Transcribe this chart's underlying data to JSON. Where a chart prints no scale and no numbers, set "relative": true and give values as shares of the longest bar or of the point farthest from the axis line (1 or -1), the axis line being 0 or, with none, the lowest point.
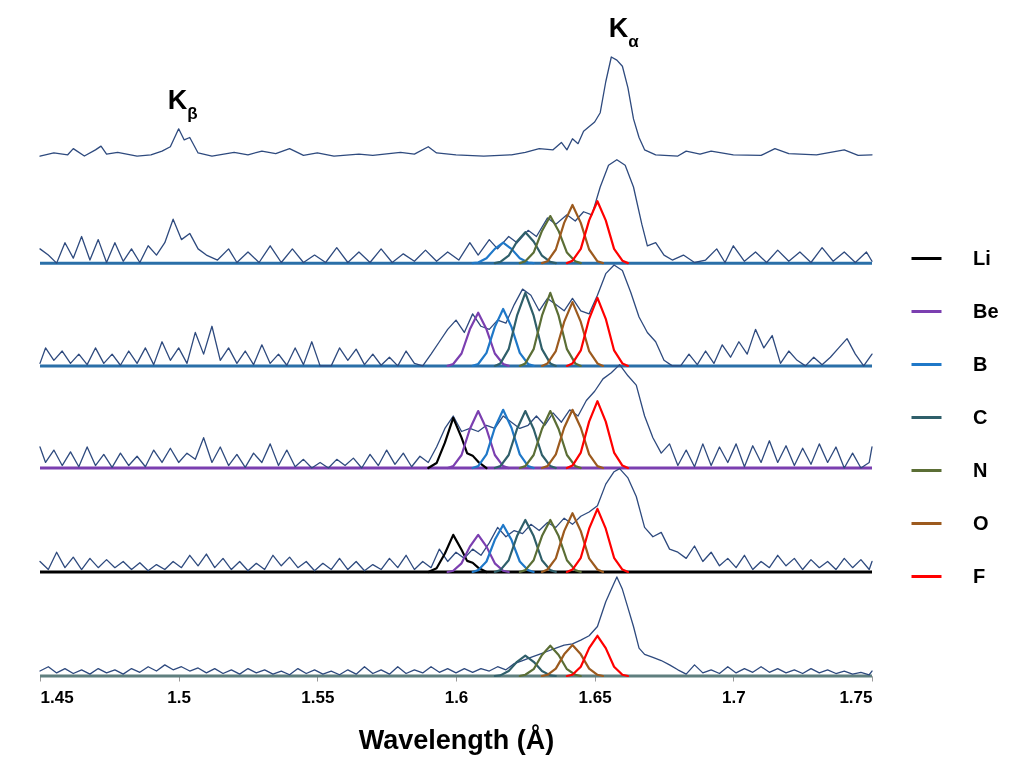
{
  "chart_data": {
    "type": "line",
    "relative": true,
    "xlabel": "Wavelength (Å)",
    "xlim": [
      1.45,
      1.75
    ],
    "xticks": [
      1.45,
      1.5,
      1.55,
      1.6,
      1.65,
      1.7,
      1.75
    ],
    "legend": "right",
    "grid": false,
    "annotations": [
      {
        "text": "K$_{β}$",
        "x": 1.5,
        "y": 0.884
      },
      {
        "text": "K$_{α}$",
        "x": 1.659,
        "y": 1.0
      }
    ],
    "ref_lines": [
      {
        "axis": "y",
        "value": 0.667,
        "color": "#2a6fa8"
      },
      {
        "axis": "y",
        "value": 0.501,
        "color": "#2a6fa8"
      },
      {
        "axis": "y",
        "value": 0.336,
        "color": "#7b3fb0"
      },
      {
        "axis": "y",
        "value": 0.168,
        "color": "#000000"
      },
      {
        "axis": "y",
        "value": 0,
        "color": "#5f7f7f"
      }
    ],
    "series": [
      {
        "color": "#2e4a7e",
        "x": [
          1.45,
          1.455,
          1.46,
          1.462,
          1.466,
          1.47,
          1.472,
          1.474,
          1.478,
          1.485,
          1.49,
          1.494,
          1.497,
          1.5,
          1.502,
          1.504,
          1.507,
          1.512,
          1.52,
          1.525,
          1.53,
          1.535,
          1.54,
          1.545,
          1.55,
          1.556,
          1.565,
          1.57,
          1.58,
          1.585,
          1.59,
          1.593,
          1.6,
          1.61,
          1.62,
          1.625,
          1.63,
          1.635,
          1.638,
          1.64,
          1.642,
          1.644,
          1.646,
          1.65,
          1.652,
          1.654,
          1.656,
          1.658,
          1.66,
          1.662,
          1.664,
          1.666,
          1.668,
          1.672,
          1.68,
          1.683,
          1.688,
          1.692,
          1.7,
          1.71,
          1.715,
          1.72,
          1.73,
          1.74,
          1.745,
          1.75
        ],
        "values": [
          0.84,
          0.845,
          0.842,
          0.852,
          0.84,
          0.85,
          0.856,
          0.843,
          0.846,
          0.84,
          0.842,
          0.848,
          0.855,
          0.884,
          0.866,
          0.87,
          0.845,
          0.84,
          0.846,
          0.842,
          0.848,
          0.844,
          0.852,
          0.841,
          0.845,
          0.84,
          0.843,
          0.841,
          0.846,
          0.843,
          0.855,
          0.845,
          0.842,
          0.84,
          0.842,
          0.846,
          0.852,
          0.85,
          0.862,
          0.85,
          0.868,
          0.86,
          0.88,
          0.895,
          0.91,
          0.96,
          1.0,
          0.995,
          0.985,
          0.95,
          0.9,
          0.87,
          0.85,
          0.842,
          0.84,
          0.848,
          0.843,
          0.848,
          0.842,
          0.841,
          0.852,
          0.844,
          0.842,
          0.85,
          0.841,
          0.842
        ]
      },
      {
        "color": "#2e4a7e",
        "x": [
          1.45,
          1.453,
          1.456,
          1.459,
          1.462,
          1.465,
          1.468,
          1.471,
          1.474,
          1.477,
          1.48,
          1.483,
          1.486,
          1.489,
          1.492,
          1.495,
          1.498,
          1.501,
          1.504,
          1.507,
          1.51,
          1.514,
          1.518,
          1.521,
          1.525,
          1.529,
          1.533,
          1.537,
          1.541,
          1.545,
          1.549,
          1.553,
          1.557,
          1.561,
          1.565,
          1.569,
          1.573,
          1.577,
          1.581,
          1.585,
          1.589,
          1.593,
          1.597,
          1.601,
          1.605,
          1.608,
          1.612,
          1.615,
          1.619,
          1.622,
          1.626,
          1.629,
          1.633,
          1.636,
          1.64,
          1.643,
          1.646,
          1.649,
          1.652,
          1.655,
          1.658,
          1.661,
          1.664,
          1.667,
          1.669,
          1.672,
          1.675,
          1.678,
          1.682,
          1.686,
          1.69,
          1.694,
          1.697,
          1.7,
          1.704,
          1.708,
          1.712,
          1.716,
          1.72,
          1.724,
          1.728,
          1.732,
          1.736,
          1.74,
          1.744,
          1.748,
          1.75
        ],
        "values": [
          0.69,
          0.68,
          0.667,
          0.7,
          0.675,
          0.71,
          0.672,
          0.705,
          0.668,
          0.7,
          0.67,
          0.69,
          0.668,
          0.695,
          0.68,
          0.7,
          0.738,
          0.705,
          0.715,
          0.69,
          0.68,
          0.672,
          0.69,
          0.668,
          0.685,
          0.668,
          0.695,
          0.668,
          0.69,
          0.668,
          0.68,
          0.668,
          0.692,
          0.668,
          0.685,
          0.668,
          0.69,
          0.668,
          0.682,
          0.67,
          0.688,
          0.67,
          0.685,
          0.672,
          0.7,
          0.68,
          0.705,
          0.69,
          0.71,
          0.7,
          0.72,
          0.71,
          0.74,
          0.73,
          0.745,
          0.735,
          0.75,
          0.745,
          0.79,
          0.825,
          0.834,
          0.825,
          0.79,
          0.73,
          0.695,
          0.7,
          0.68,
          0.672,
          0.68,
          0.668,
          0.672,
          0.69,
          0.668,
          0.695,
          0.67,
          0.685,
          0.668,
          0.688,
          0.67,
          0.685,
          0.668,
          0.692,
          0.67,
          0.685,
          0.668,
          0.685,
          0.67
        ]
      },
      {
        "color": "#2e4a7e",
        "x": [
          1.45,
          1.452,
          1.455,
          1.458,
          1.461,
          1.464,
          1.467,
          1.47,
          1.473,
          1.476,
          1.479,
          1.482,
          1.485,
          1.488,
          1.491,
          1.494,
          1.497,
          1.5,
          1.503,
          1.506,
          1.509,
          1.512,
          1.515,
          1.518,
          1.521,
          1.524,
          1.527,
          1.53,
          1.533,
          1.536,
          1.539,
          1.542,
          1.545,
          1.548,
          1.551,
          1.555,
          1.558,
          1.561,
          1.564,
          1.567,
          1.57,
          1.573,
          1.576,
          1.579,
          1.582,
          1.585,
          1.588,
          1.591,
          1.594,
          1.597,
          1.6,
          1.603,
          1.606,
          1.609,
          1.612,
          1.615,
          1.618,
          1.621,
          1.624,
          1.627,
          1.63,
          1.633,
          1.636,
          1.639,
          1.642,
          1.645,
          1.648,
          1.651,
          1.654,
          1.657,
          1.66,
          1.663,
          1.666,
          1.669,
          1.672,
          1.675,
          1.678,
          1.681,
          1.684,
          1.687,
          1.69,
          1.693,
          1.696,
          1.699,
          1.702,
          1.705,
          1.708,
          1.711,
          1.714,
          1.717,
          1.72,
          1.723,
          1.726,
          1.729,
          1.732,
          1.735,
          1.738,
          1.741,
          1.744,
          1.747,
          1.75
        ],
        "values": [
          0.505,
          0.53,
          0.51,
          0.525,
          0.505,
          0.52,
          0.503,
          0.53,
          0.505,
          0.52,
          0.502,
          0.525,
          0.505,
          0.53,
          0.503,
          0.54,
          0.51,
          0.53,
          0.505,
          0.555,
          0.52,
          0.565,
          0.51,
          0.53,
          0.505,
          0.525,
          0.503,
          0.535,
          0.505,
          0.52,
          0.502,
          0.53,
          0.503,
          0.54,
          0.501,
          0.501,
          0.53,
          0.51,
          0.528,
          0.503,
          0.52,
          0.502,
          0.515,
          0.501,
          0.525,
          0.505,
          0.501,
          0.52,
          0.54,
          0.56,
          0.575,
          0.555,
          0.585,
          0.565,
          0.56,
          0.575,
          0.57,
          0.6,
          0.625,
          0.615,
          0.59,
          0.61,
          0.6,
          0.59,
          0.61,
          0.59,
          0.585,
          0.615,
          0.65,
          0.664,
          0.655,
          0.62,
          0.58,
          0.555,
          0.54,
          0.51,
          0.501,
          0.501,
          0.52,
          0.503,
          0.525,
          0.505,
          0.535,
          0.515,
          0.54,
          0.52,
          0.56,
          0.53,
          0.55,
          0.505,
          0.525,
          0.51,
          0.501,
          0.515,
          0.503,
          0.515,
          0.53,
          0.545,
          0.52,
          0.501,
          0.52
        ]
      },
      {
        "color": "#2e4a7e",
        "x": [
          1.45,
          1.452,
          1.455,
          1.458,
          1.461,
          1.464,
          1.467,
          1.47,
          1.473,
          1.476,
          1.479,
          1.482,
          1.485,
          1.488,
          1.491,
          1.494,
          1.497,
          1.5,
          1.503,
          1.506,
          1.509,
          1.512,
          1.515,
          1.518,
          1.521,
          1.524,
          1.527,
          1.53,
          1.533,
          1.536,
          1.539,
          1.542,
          1.545,
          1.548,
          1.551,
          1.554,
          1.557,
          1.56,
          1.563,
          1.566,
          1.569,
          1.572,
          1.575,
          1.578,
          1.581,
          1.584,
          1.587,
          1.59,
          1.593,
          1.596,
          1.599,
          1.602,
          1.605,
          1.608,
          1.611,
          1.614,
          1.617,
          1.62,
          1.623,
          1.626,
          1.629,
          1.632,
          1.635,
          1.638,
          1.641,
          1.644,
          1.647,
          1.65,
          1.653,
          1.656,
          1.659,
          1.662,
          1.665,
          1.668,
          1.671,
          1.674,
          1.677,
          1.68,
          1.683,
          1.686,
          1.689,
          1.692,
          1.695,
          1.698,
          1.701,
          1.704,
          1.707,
          1.71,
          1.713,
          1.716,
          1.719,
          1.722,
          1.725,
          1.728,
          1.731,
          1.734,
          1.737,
          1.74,
          1.743,
          1.746,
          1.749,
          1.75
        ],
        "values": [
          0.37,
          0.345,
          0.365,
          0.34,
          0.362,
          0.338,
          0.37,
          0.34,
          0.358,
          0.337,
          0.36,
          0.34,
          0.355,
          0.338,
          0.365,
          0.345,
          0.368,
          0.345,
          0.36,
          0.35,
          0.385,
          0.345,
          0.37,
          0.34,
          0.358,
          0.337,
          0.36,
          0.345,
          0.375,
          0.34,
          0.365,
          0.338,
          0.35,
          0.336,
          0.345,
          0.336,
          0.35,
          0.34,
          0.352,
          0.336,
          0.358,
          0.34,
          0.365,
          0.342,
          0.36,
          0.338,
          0.355,
          0.345,
          0.37,
          0.4,
          0.42,
          0.395,
          0.4,
          0.395,
          0.405,
          0.4,
          0.42,
          0.41,
          0.4,
          0.405,
          0.42,
          0.405,
          0.425,
          0.41,
          0.43,
          0.42,
          0.445,
          0.46,
          0.48,
          0.49,
          0.503,
          0.485,
          0.47,
          0.42,
          0.385,
          0.36,
          0.375,
          0.34,
          0.365,
          0.338,
          0.375,
          0.34,
          0.37,
          0.345,
          0.375,
          0.338,
          0.372,
          0.345,
          0.38,
          0.345,
          0.372,
          0.34,
          0.368,
          0.342,
          0.375,
          0.345,
          0.37,
          0.336,
          0.36,
          0.336,
          0.345,
          0.37
        ]
      },
      {
        "color": "#2e4a7e",
        "x": [
          1.45,
          1.453,
          1.456,
          1.459,
          1.462,
          1.465,
          1.468,
          1.471,
          1.474,
          1.477,
          1.48,
          1.483,
          1.486,
          1.489,
          1.492,
          1.495,
          1.498,
          1.501,
          1.504,
          1.507,
          1.51,
          1.513,
          1.516,
          1.519,
          1.522,
          1.525,
          1.528,
          1.531,
          1.534,
          1.537,
          1.54,
          1.543,
          1.546,
          1.549,
          1.552,
          1.555,
          1.558,
          1.561,
          1.564,
          1.567,
          1.57,
          1.573,
          1.576,
          1.579,
          1.582,
          1.585,
          1.588,
          1.591,
          1.594,
          1.597,
          1.6,
          1.603,
          1.606,
          1.609,
          1.612,
          1.615,
          1.618,
          1.621,
          1.624,
          1.627,
          1.63,
          1.633,
          1.636,
          1.639,
          1.642,
          1.645,
          1.648,
          1.651,
          1.654,
          1.657,
          1.659,
          1.662,
          1.665,
          1.668,
          1.671,
          1.674,
          1.677,
          1.68,
          1.683,
          1.686,
          1.689,
          1.692,
          1.695,
          1.698,
          1.701,
          1.704,
          1.707,
          1.71,
          1.713,
          1.716,
          1.719,
          1.722,
          1.725,
          1.728,
          1.731,
          1.734,
          1.737,
          1.74,
          1.743,
          1.746,
          1.749,
          1.75
        ],
        "values": [
          0.185,
          0.172,
          0.2,
          0.175,
          0.192,
          0.172,
          0.19,
          0.175,
          0.188,
          0.175,
          0.185,
          0.172,
          0.183,
          0.17,
          0.18,
          0.172,
          0.185,
          0.175,
          0.195,
          0.178,
          0.197,
          0.175,
          0.19,
          0.172,
          0.185,
          0.17,
          0.182,
          0.172,
          0.195,
          0.178,
          0.192,
          0.175,
          0.185,
          0.17,
          0.182,
          0.172,
          0.19,
          0.172,
          0.185,
          0.17,
          0.18,
          0.172,
          0.19,
          0.175,
          0.195,
          0.172,
          0.185,
          0.175,
          0.205,
          0.185,
          0.2,
          0.19,
          0.205,
          0.195,
          0.215,
          0.24,
          0.225,
          0.235,
          0.23,
          0.245,
          0.235,
          0.248,
          0.24,
          0.255,
          0.245,
          0.258,
          0.265,
          0.275,
          0.31,
          0.33,
          0.335,
          0.32,
          0.29,
          0.24,
          0.225,
          0.232,
          0.205,
          0.2,
          0.19,
          0.21,
          0.185,
          0.2,
          0.178,
          0.19,
          0.175,
          0.195,
          0.172,
          0.185,
          0.175,
          0.195,
          0.178,
          0.19,
          0.172,
          0.188,
          0.175,
          0.185,
          0.172,
          0.19,
          0.175,
          0.188,
          0.172,
          0.185
        ]
      },
      {
        "color": "#2e4a7e",
        "x": [
          1.45,
          1.453,
          1.456,
          1.459,
          1.462,
          1.465,
          1.468,
          1.471,
          1.474,
          1.477,
          1.48,
          1.483,
          1.486,
          1.489,
          1.492,
          1.495,
          1.498,
          1.501,
          1.504,
          1.507,
          1.51,
          1.513,
          1.516,
          1.519,
          1.522,
          1.525,
          1.528,
          1.531,
          1.534,
          1.537,
          1.54,
          1.543,
          1.546,
          1.549,
          1.552,
          1.555,
          1.558,
          1.561,
          1.564,
          1.567,
          1.57,
          1.573,
          1.576,
          1.579,
          1.582,
          1.585,
          1.588,
          1.591,
          1.594,
          1.597,
          1.6,
          1.603,
          1.606,
          1.609,
          1.612,
          1.615,
          1.618,
          1.621,
          1.624,
          1.627,
          1.63,
          1.633,
          1.636,
          1.639,
          1.642,
          1.645,
          1.648,
          1.651,
          1.654,
          1.656,
          1.658,
          1.66,
          1.662,
          1.664,
          1.666,
          1.668,
          1.671,
          1.674,
          1.677,
          1.68,
          1.683,
          1.686,
          1.689,
          1.692,
          1.695,
          1.698,
          1.701,
          1.704,
          1.707,
          1.71,
          1.713,
          1.716,
          1.719,
          1.722,
          1.725,
          1.728,
          1.731,
          1.734,
          1.737,
          1.74,
          1.743,
          1.746,
          1.749,
          1.75
        ],
        "values": [
          0.008,
          0.015,
          0.005,
          0.012,
          0.004,
          0.01,
          0.003,
          0.012,
          0.005,
          0.01,
          0.003,
          0.012,
          0.006,
          0.015,
          0.008,
          0.018,
          0.01,
          0.015,
          0.008,
          0.013,
          0.005,
          0.012,
          0.004,
          0.01,
          0.003,
          0.012,
          0.005,
          0.01,
          0.003,
          0.008,
          0.002,
          0.012,
          0.004,
          0.01,
          0.003,
          0.008,
          0.002,
          0.01,
          0.003,
          0.015,
          0.004,
          0.01,
          0.003,
          0.015,
          0.004,
          0.01,
          0.005,
          0.015,
          0.006,
          0.012,
          0.005,
          0.012,
          0.006,
          0.012,
          0.008,
          0.015,
          0.01,
          0.02,
          0.025,
          0.03,
          0.035,
          0.04,
          0.045,
          0.05,
          0.052,
          0.058,
          0.065,
          0.08,
          0.12,
          0.14,
          0.16,
          0.14,
          0.11,
          0.08,
          0.045,
          0.035,
          0.03,
          0.025,
          0.018,
          0.01,
          0.003,
          0.018,
          0.005,
          0.01,
          0.004,
          0.015,
          0.005,
          0.012,
          0.006,
          0.015,
          0.006,
          0.012,
          0.005,
          0.01,
          0.004,
          0.012,
          0.005,
          0.01,
          0.004,
          0.008,
          0.003,
          0.006,
          0.002,
          0.008
        ]
      },
      {
        "name": "Li",
        "color": "#000000",
        "x": [
          1.59,
          1.593,
          1.596,
          1.599,
          1.602,
          1.604,
          1.606,
          1.608,
          1.611
        ],
        "values": [
          0.336,
          0.344,
          0.377,
          0.417,
          0.385,
          0.36,
          0.356,
          0.346,
          0.336
        ]
      },
      {
        "name": "Be",
        "color": "#7b3fb0",
        "x": [
          1.597,
          1.599,
          1.602,
          1.605,
          1.608,
          1.611,
          1.614,
          1.617,
          1.619
        ],
        "values": [
          0.336,
          0.339,
          0.357,
          0.399,
          0.428,
          0.399,
          0.357,
          0.339,
          0.336
        ]
      },
      {
        "name": "B",
        "color": "#1f78c8",
        "x": [
          1.606,
          1.608,
          1.611,
          1.614,
          1.617,
          1.62,
          1.623,
          1.626,
          1.628
        ],
        "values": [
          0.336,
          0.339,
          0.358,
          0.401,
          0.43,
          0.401,
          0.358,
          0.339,
          0.336
        ]
      },
      {
        "name": "C",
        "color": "#2f5f6a",
        "x": [
          1.614,
          1.616,
          1.619,
          1.622,
          1.625,
          1.628,
          1.631,
          1.634,
          1.636
        ],
        "values": [
          0.336,
          0.339,
          0.357,
          0.399,
          0.428,
          0.399,
          0.357,
          0.339,
          0.336
        ]
      },
      {
        "name": "N",
        "color": "#5b6e35",
        "x": [
          1.623,
          1.625,
          1.628,
          1.631,
          1.634,
          1.637,
          1.64,
          1.643,
          1.645
        ],
        "values": [
          0.336,
          0.339,
          0.357,
          0.399,
          0.428,
          0.399,
          0.357,
          0.339,
          0.336
        ]
      },
      {
        "name": "O",
        "color": "#9c5a1e",
        "x": [
          1.631,
          1.633,
          1.636,
          1.639,
          1.642,
          1.645,
          1.648,
          1.651,
          1.653
        ],
        "values": [
          0.336,
          0.339,
          0.358,
          0.401,
          0.43,
          0.401,
          0.358,
          0.339,
          0.336
        ]
      },
      {
        "name": "F",
        "color": "#ff0000",
        "x": [
          1.64,
          1.642,
          1.645,
          1.648,
          1.651,
          1.654,
          1.657,
          1.66,
          1.662
        ],
        "values": [
          0.336,
          0.34,
          0.361,
          0.411,
          0.444,
          0.411,
          0.361,
          0.34,
          0.336
        ]
      },
      {
        "color": "#1f78c8",
        "x": [
          1.606,
          1.608,
          1.611,
          1.614,
          1.617,
          1.62,
          1.623,
          1.626,
          1.628
        ],
        "values": [
          0.667,
          0.668,
          0.675,
          0.69,
          0.7,
          0.69,
          0.675,
          0.668,
          0.667
        ]
      },
      {
        "color": "#2f5f6a",
        "x": [
          1.614,
          1.616,
          1.619,
          1.622,
          1.625,
          1.628,
          1.631,
          1.634,
          1.636
        ],
        "values": [
          0.667,
          0.669,
          0.679,
          0.702,
          0.717,
          0.702,
          0.679,
          0.669,
          0.667
        ]
      },
      {
        "color": "#5b6e35",
        "x": [
          1.623,
          1.625,
          1.628,
          1.631,
          1.634,
          1.637,
          1.64,
          1.643,
          1.645
        ],
        "values": [
          0.667,
          0.67,
          0.684,
          0.719,
          0.743,
          0.719,
          0.684,
          0.67,
          0.667
        ]
      },
      {
        "color": "#9c5a1e",
        "x": [
          1.631,
          1.633,
          1.636,
          1.639,
          1.642,
          1.645,
          1.648,
          1.651,
          1.653
        ],
        "values": [
          0.667,
          0.67,
          0.689,
          0.732,
          0.761,
          0.732,
          0.689,
          0.67,
          0.667
        ]
      },
      {
        "color": "#ff0000",
        "x": [
          1.64,
          1.642,
          1.645,
          1.648,
          1.651,
          1.654,
          1.657,
          1.66,
          1.662
        ],
        "values": [
          0.667,
          0.671,
          0.69,
          0.736,
          0.767,
          0.736,
          0.69,
          0.671,
          0.667
        ]
      },
      {
        "color": "#7b3fb0",
        "x": [
          1.597,
          1.599,
          1.602,
          1.605,
          1.608,
          1.611,
          1.614,
          1.617,
          1.619
        ],
        "values": [
          0.501,
          0.504,
          0.521,
          0.56,
          0.587,
          0.56,
          0.521,
          0.504,
          0.501
        ]
      },
      {
        "color": "#1f78c8",
        "x": [
          1.606,
          1.608,
          1.611,
          1.614,
          1.617,
          1.62,
          1.623,
          1.626,
          1.628
        ],
        "values": [
          0.501,
          0.504,
          0.522,
          0.564,
          0.593,
          0.564,
          0.522,
          0.504,
          0.501
        ]
      },
      {
        "color": "#2f5f6a",
        "x": [
          1.614,
          1.616,
          1.619,
          1.622,
          1.625,
          1.628,
          1.631,
          1.634,
          1.636
        ],
        "values": [
          0.501,
          0.505,
          0.528,
          0.582,
          0.619,
          0.582,
          0.528,
          0.505,
          0.501
        ]
      },
      {
        "color": "#5b6e35",
        "x": [
          1.623,
          1.625,
          1.628,
          1.631,
          1.634,
          1.637,
          1.64,
          1.643,
          1.645
        ],
        "values": [
          0.501,
          0.505,
          0.528,
          0.582,
          0.619,
          0.582,
          0.528,
          0.505,
          0.501
        ]
      },
      {
        "color": "#9c5a1e",
        "x": [
          1.631,
          1.633,
          1.636,
          1.639,
          1.642,
          1.645,
          1.648,
          1.651,
          1.653
        ],
        "values": [
          0.501,
          0.505,
          0.525,
          0.572,
          0.604,
          0.572,
          0.525,
          0.505,
          0.501
        ]
      },
      {
        "color": "#ff0000",
        "x": [
          1.64,
          1.642,
          1.645,
          1.648,
          1.651,
          1.654,
          1.657,
          1.66,
          1.662
        ],
        "values": [
          0.501,
          0.505,
          0.526,
          0.577,
          0.611,
          0.577,
          0.526,
          0.505,
          0.501
        ]
      },
      {
        "color": "#000000",
        "x": [
          1.59,
          1.593,
          1.596,
          1.599,
          1.602,
          1.604,
          1.606,
          1.608,
          1.611
        ],
        "values": [
          0.168,
          0.174,
          0.198,
          0.228,
          0.204,
          0.186,
          0.183,
          0.175,
          0.168
        ]
      },
      {
        "color": "#7b3fb0",
        "x": [
          1.597,
          1.599,
          1.602,
          1.605,
          1.608,
          1.611,
          1.614,
          1.617,
          1.619
        ],
        "values": [
          0.168,
          0.17,
          0.182,
          0.209,
          0.228,
          0.209,
          0.182,
          0.17,
          0.168
        ]
      },
      {
        "color": "#1f78c8",
        "x": [
          1.606,
          1.608,
          1.611,
          1.614,
          1.617,
          1.62,
          1.623,
          1.626,
          1.628
        ],
        "values": [
          0.168,
          0.171,
          0.185,
          0.22,
          0.244,
          0.22,
          0.185,
          0.171,
          0.168
        ]
      },
      {
        "color": "#2f5f6a",
        "x": [
          1.614,
          1.616,
          1.619,
          1.622,
          1.625,
          1.628,
          1.631,
          1.634,
          1.636
        ],
        "values": [
          0.168,
          0.171,
          0.187,
          0.226,
          0.252,
          0.226,
          0.187,
          0.171,
          0.168
        ]
      },
      {
        "color": "#5b6e35",
        "x": [
          1.623,
          1.625,
          1.628,
          1.631,
          1.634,
          1.637,
          1.64,
          1.643,
          1.645
        ],
        "values": [
          0.168,
          0.171,
          0.187,
          0.226,
          0.252,
          0.226,
          0.187,
          0.171,
          0.168
        ]
      },
      {
        "color": "#9c5a1e",
        "x": [
          1.631,
          1.633,
          1.636,
          1.639,
          1.642,
          1.645,
          1.648,
          1.651,
          1.653
        ],
        "values": [
          0.168,
          0.172,
          0.19,
          0.234,
          0.263,
          0.234,
          0.19,
          0.172,
          0.168
        ]
      },
      {
        "color": "#ff0000",
        "x": [
          1.64,
          1.642,
          1.645,
          1.648,
          1.651,
          1.654,
          1.657,
          1.66,
          1.662
        ],
        "values": [
          0.168,
          0.172,
          0.191,
          0.238,
          0.27,
          0.238,
          0.191,
          0.172,
          0.168
        ]
      },
      {
        "color": "#2f5f6a",
        "x": [
          1.614,
          1.616,
          1.619,
          1.622,
          1.625,
          1.628,
          1.631,
          1.634,
          1.636
        ],
        "values": [
          0,
          0.001,
          0.008,
          0.023,
          0.033,
          0.023,
          0.008,
          0.001,
          0
        ]
      },
      {
        "color": "#5b6e35",
        "x": [
          1.623,
          1.625,
          1.628,
          1.631,
          1.634,
          1.637,
          1.64,
          1.643,
          1.645
        ],
        "values": [
          0,
          0.002,
          0.011,
          0.034,
          0.049,
          0.034,
          0.011,
          0.002,
          0
        ]
      },
      {
        "color": "#9c5a1e",
        "x": [
          1.631,
          1.633,
          1.636,
          1.639,
          1.642,
          1.645,
          1.648,
          1.651,
          1.653
        ],
        "values": [
          0,
          0.002,
          0.012,
          0.035,
          0.05,
          0.035,
          0.012,
          0.002,
          0
        ]
      },
      {
        "color": "#ff0000",
        "x": [
          1.64,
          1.642,
          1.645,
          1.648,
          1.651,
          1.654,
          1.657,
          1.66,
          1.662
        ],
        "values": [
          0,
          0.002,
          0.015,
          0.045,
          0.065,
          0.045,
          0.015,
          0.002,
          0
        ]
      }
    ]
  }
}
